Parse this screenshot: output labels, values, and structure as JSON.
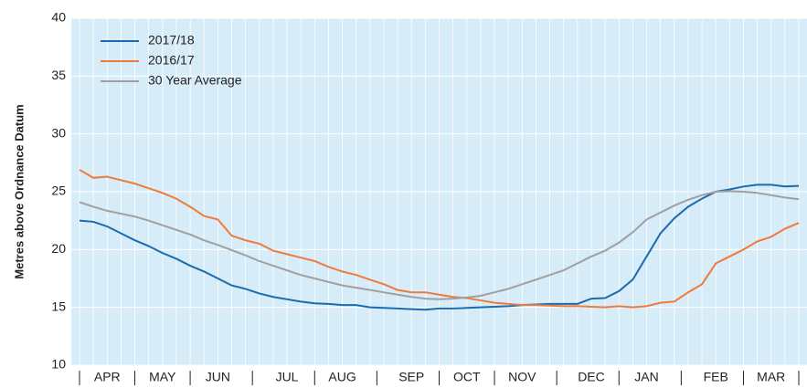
{
  "chart_data": {
    "type": "line",
    "y_label": "Metres above Ordnance Datum",
    "categories": [
      null,
      null,
      "APR",
      null,
      null,
      null,
      "MAY",
      null,
      null,
      null,
      "JUN",
      null,
      null,
      null,
      null,
      "JUL",
      null,
      null,
      null,
      "AUG",
      null,
      null,
      null,
      null,
      "SEP",
      null,
      null,
      null,
      "OCT",
      null,
      null,
      null,
      "NOV",
      null,
      null,
      null,
      null,
      "DEC",
      null,
      null,
      null,
      "JAN",
      null,
      null,
      null,
      null,
      "FEB",
      null,
      null,
      null,
      "MAR",
      null,
      null
    ],
    "series": [
      {
        "name": "2017/18",
        "color": "#1a6bb0",
        "values": [
          22.5,
          22.4,
          22.0,
          21.4,
          20.8,
          20.3,
          19.7,
          19.2,
          18.6,
          18.1,
          17.5,
          16.9,
          16.6,
          16.2,
          15.9,
          15.7,
          15.5,
          15.35,
          15.3,
          15.2,
          15.2,
          15.0,
          14.95,
          14.9,
          14.85,
          14.8,
          14.9,
          14.9,
          14.95,
          15.0,
          15.05,
          15.1,
          15.2,
          15.25,
          15.3,
          15.3,
          15.3,
          15.75,
          15.8,
          16.4,
          17.4,
          19.4,
          21.4,
          22.7,
          23.7,
          24.4,
          25.0,
          25.2,
          25.45,
          25.6,
          25.6,
          25.45,
          25.5
        ]
      },
      {
        "name": "2016/17",
        "color": "#f07a3a",
        "values": [
          26.9,
          26.2,
          26.3,
          26.0,
          25.7,
          25.3,
          24.9,
          24.4,
          23.7,
          22.9,
          22.6,
          21.2,
          20.8,
          20.5,
          19.9,
          19.6,
          19.3,
          19.0,
          18.5,
          18.1,
          17.8,
          17.4,
          17.0,
          16.5,
          16.3,
          16.3,
          16.1,
          15.9,
          15.8,
          15.6,
          15.4,
          15.3,
          15.2,
          15.2,
          15.15,
          15.1,
          15.1,
          15.05,
          15.0,
          15.1,
          15.0,
          15.1,
          15.4,
          15.5,
          16.3,
          17.0,
          18.8,
          19.4,
          20.0,
          20.7,
          21.1,
          21.8,
          22.3
        ]
      },
      {
        "name": "30 Year Average",
        "color": "#a0a0a0",
        "values": [
          24.1,
          23.7,
          23.35,
          23.1,
          22.85,
          22.5,
          22.1,
          21.7,
          21.3,
          20.8,
          20.4,
          19.95,
          19.5,
          19.0,
          18.6,
          18.2,
          17.8,
          17.5,
          17.2,
          16.9,
          16.7,
          16.5,
          16.3,
          16.1,
          15.9,
          15.75,
          15.7,
          15.75,
          15.85,
          16.0,
          16.3,
          16.6,
          17.0,
          17.4,
          17.8,
          18.2,
          18.8,
          19.4,
          19.9,
          20.6,
          21.5,
          22.6,
          23.2,
          23.8,
          24.3,
          24.7,
          25.0,
          25.05,
          25.0,
          24.9,
          24.7,
          24.5,
          24.35
        ]
      }
    ],
    "ylim": [
      10,
      40
    ],
    "yticks": [
      10,
      15,
      20,
      25,
      30,
      35,
      40
    ],
    "grid": true,
    "legend": "upper left"
  }
}
